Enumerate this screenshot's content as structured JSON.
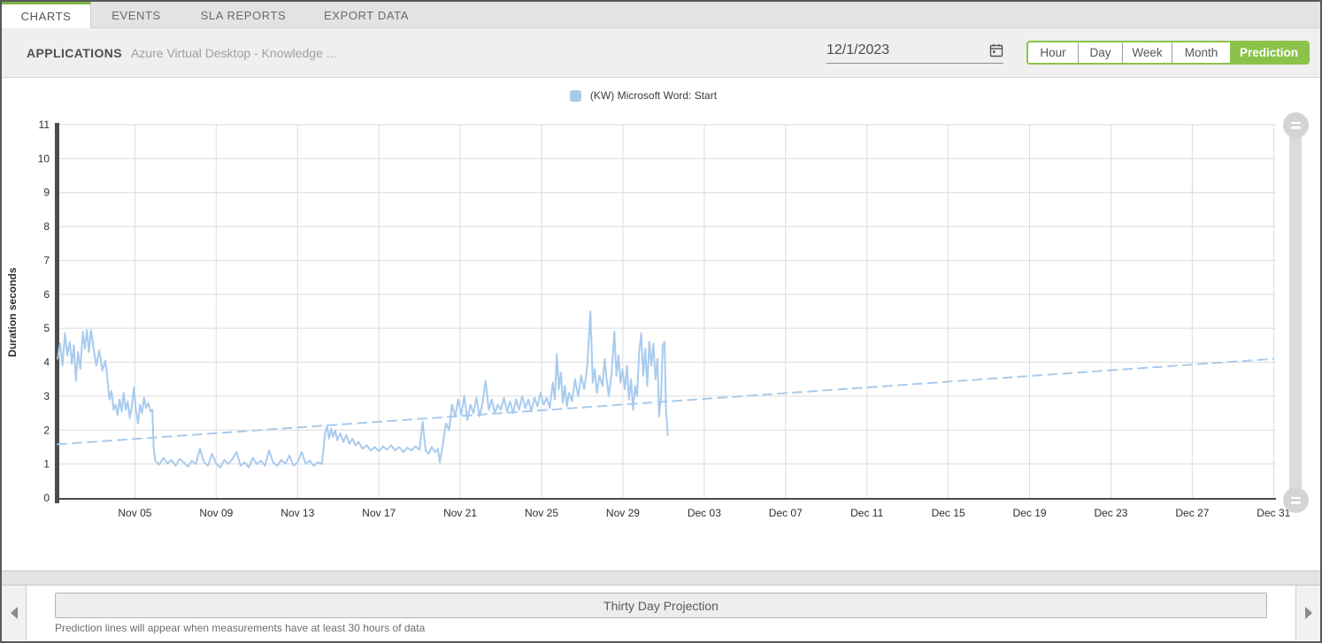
{
  "tabs": {
    "items": [
      {
        "label": "CHARTS",
        "active": true
      },
      {
        "label": "EVENTS",
        "active": false
      },
      {
        "label": "SLA REPORTS",
        "active": false
      },
      {
        "label": "EXPORT DATA",
        "active": false
      }
    ]
  },
  "header": {
    "section_label": "APPLICATIONS",
    "section_value": "Azure Virtual Desktop - Knowledge ...",
    "date_value": "12/1/2023",
    "range_buttons": [
      {
        "label": "Hour",
        "active": false
      },
      {
        "label": "Day",
        "active": false
      },
      {
        "label": "Week",
        "active": false
      },
      {
        "label": "Month",
        "active": false
      },
      {
        "label": "Prediction",
        "active": true
      }
    ],
    "accent_color": "#8bc34a"
  },
  "legend": {
    "label": "(KW) Microsoft Word: Start",
    "color": "#a8cbee"
  },
  "chart_data": {
    "type": "line",
    "title": "",
    "xlabel": "",
    "ylabel": "Duration seconds",
    "ylim": [
      0,
      11
    ],
    "x_range_days": [
      0,
      60
    ],
    "x_start_date": "Nov 01",
    "grid": true,
    "legend_position": "top-center",
    "y_ticks": [
      0,
      1,
      2,
      3,
      4,
      5,
      6,
      7,
      8,
      9,
      10,
      11
    ],
    "x_ticks": [
      {
        "day": 4,
        "label": "Nov 05"
      },
      {
        "day": 8,
        "label": "Nov 09"
      },
      {
        "day": 12,
        "label": "Nov 13"
      },
      {
        "day": 16,
        "label": "Nov 17"
      },
      {
        "day": 20,
        "label": "Nov 21"
      },
      {
        "day": 24,
        "label": "Nov 25"
      },
      {
        "day": 28,
        "label": "Nov 29"
      },
      {
        "day": 32,
        "label": "Dec 03"
      },
      {
        "day": 36,
        "label": "Dec 07"
      },
      {
        "day": 40,
        "label": "Dec 11"
      },
      {
        "day": 44,
        "label": "Dec 15"
      },
      {
        "day": 48,
        "label": "Dec 19"
      },
      {
        "day": 52,
        "label": "Dec 23"
      },
      {
        "day": 56,
        "label": "Dec 27"
      },
      {
        "day": 60,
        "label": "Dec 31"
      }
    ],
    "series": [
      {
        "name": "(KW) Microsoft Word: Start",
        "style": "solid",
        "color": "#a8cbee",
        "points": [
          [
            0.2,
            4.1
          ],
          [
            0.32,
            4.55
          ],
          [
            0.44,
            3.9
          ],
          [
            0.56,
            4.85
          ],
          [
            0.68,
            4.2
          ],
          [
            0.8,
            4.6
          ],
          [
            0.9,
            3.95
          ],
          [
            1.0,
            4.5
          ],
          [
            1.1,
            3.45
          ],
          [
            1.2,
            4.3
          ],
          [
            1.32,
            3.8
          ],
          [
            1.44,
            4.9
          ],
          [
            1.54,
            4.4
          ],
          [
            1.64,
            4.95
          ],
          [
            1.74,
            4.3
          ],
          [
            1.84,
            4.95
          ],
          [
            1.95,
            4.5
          ],
          [
            2.1,
            3.9
          ],
          [
            2.25,
            4.35
          ],
          [
            2.4,
            3.75
          ],
          [
            2.55,
            4.05
          ],
          [
            2.65,
            3.5
          ],
          [
            2.75,
            2.9
          ],
          [
            2.85,
            3.15
          ],
          [
            2.95,
            2.6
          ],
          [
            3.05,
            2.75
          ],
          [
            3.15,
            2.45
          ],
          [
            3.25,
            2.9
          ],
          [
            3.35,
            2.55
          ],
          [
            3.45,
            3.1
          ],
          [
            3.55,
            2.6
          ],
          [
            3.65,
            2.85
          ],
          [
            3.75,
            2.35
          ],
          [
            3.85,
            2.7
          ],
          [
            3.95,
            3.25
          ],
          [
            4.05,
            2.6
          ],
          [
            4.15,
            2.2
          ],
          [
            4.25,
            2.75
          ],
          [
            4.35,
            2.5
          ],
          [
            4.45,
            2.95
          ],
          [
            4.55,
            2.65
          ],
          [
            4.65,
            2.8
          ],
          [
            4.78,
            2.55
          ],
          [
            4.86,
            2.6
          ],
          [
            4.92,
            1.5
          ],
          [
            5.0,
            1.1
          ],
          [
            5.2,
            0.98
          ],
          [
            5.4,
            1.18
          ],
          [
            5.6,
            1.02
          ],
          [
            5.8,
            1.12
          ],
          [
            6.0,
            0.95
          ],
          [
            6.2,
            1.15
          ],
          [
            6.4,
            1.05
          ],
          [
            6.6,
            0.92
          ],
          [
            6.8,
            1.1
          ],
          [
            7.0,
            1.0
          ],
          [
            7.2,
            1.45
          ],
          [
            7.4,
            1.05
          ],
          [
            7.6,
            0.95
          ],
          [
            7.8,
            1.3
          ],
          [
            8.0,
            1.02
          ],
          [
            8.2,
            0.9
          ],
          [
            8.4,
            1.12
          ],
          [
            8.6,
            1.0
          ],
          [
            8.8,
            1.15
          ],
          [
            9.0,
            1.35
          ],
          [
            9.2,
            0.95
          ],
          [
            9.4,
            1.05
          ],
          [
            9.6,
            0.9
          ],
          [
            9.8,
            1.18
          ],
          [
            10.0,
            1.0
          ],
          [
            10.2,
            1.1
          ],
          [
            10.4,
            0.95
          ],
          [
            10.6,
            1.4
          ],
          [
            10.8,
            1.05
          ],
          [
            11.0,
            0.95
          ],
          [
            11.2,
            1.12
          ],
          [
            11.4,
            1.0
          ],
          [
            11.6,
            1.25
          ],
          [
            11.8,
            0.95
          ],
          [
            12.0,
            1.05
          ],
          [
            12.2,
            1.35
          ],
          [
            12.4,
            1.0
          ],
          [
            12.6,
            1.1
          ],
          [
            12.8,
            0.95
          ],
          [
            13.0,
            1.05
          ],
          [
            13.2,
            1.0
          ],
          [
            13.35,
            1.9
          ],
          [
            13.45,
            2.1
          ],
          [
            13.55,
            1.75
          ],
          [
            13.65,
            2.05
          ],
          [
            13.75,
            1.8
          ],
          [
            13.85,
            2.0
          ],
          [
            13.95,
            1.7
          ],
          [
            14.1,
            1.9
          ],
          [
            14.25,
            1.65
          ],
          [
            14.4,
            1.85
          ],
          [
            14.55,
            1.6
          ],
          [
            14.7,
            1.75
          ],
          [
            14.85,
            1.55
          ],
          [
            15.0,
            1.65
          ],
          [
            15.2,
            1.45
          ],
          [
            15.4,
            1.55
          ],
          [
            15.6,
            1.4
          ],
          [
            15.8,
            1.5
          ],
          [
            16.0,
            1.38
          ],
          [
            16.2,
            1.52
          ],
          [
            16.4,
            1.42
          ],
          [
            16.6,
            1.55
          ],
          [
            16.8,
            1.4
          ],
          [
            17.0,
            1.5
          ],
          [
            17.2,
            1.35
          ],
          [
            17.4,
            1.48
          ],
          [
            17.6,
            1.4
          ],
          [
            17.8,
            1.52
          ],
          [
            18.0,
            1.42
          ],
          [
            18.15,
            2.25
          ],
          [
            18.3,
            1.4
          ],
          [
            18.45,
            1.3
          ],
          [
            18.6,
            1.5
          ],
          [
            18.75,
            1.35
          ],
          [
            18.9,
            1.45
          ],
          [
            19.0,
            1.05
          ],
          [
            19.15,
            1.6
          ],
          [
            19.3,
            2.2
          ],
          [
            19.45,
            2.0
          ],
          [
            19.6,
            2.75
          ],
          [
            19.75,
            2.4
          ],
          [
            19.9,
            2.9
          ],
          [
            20.05,
            2.45
          ],
          [
            20.2,
            3.0
          ],
          [
            20.35,
            2.3
          ],
          [
            20.5,
            2.75
          ],
          [
            20.65,
            2.5
          ],
          [
            20.8,
            2.95
          ],
          [
            20.95,
            2.4
          ],
          [
            21.1,
            2.8
          ],
          [
            21.25,
            3.45
          ],
          [
            21.4,
            2.6
          ],
          [
            21.55,
            2.9
          ],
          [
            21.7,
            2.5
          ],
          [
            21.85,
            2.75
          ],
          [
            22.0,
            2.6
          ],
          [
            22.15,
            2.95
          ],
          [
            22.3,
            2.55
          ],
          [
            22.45,
            2.85
          ],
          [
            22.6,
            2.5
          ],
          [
            22.75,
            2.9
          ],
          [
            22.9,
            2.6
          ],
          [
            23.05,
            3.0
          ],
          [
            23.2,
            2.65
          ],
          [
            23.35,
            2.9
          ],
          [
            23.5,
            2.55
          ],
          [
            23.65,
            2.95
          ],
          [
            23.8,
            2.7
          ],
          [
            23.95,
            3.1
          ],
          [
            24.1,
            2.75
          ],
          [
            24.25,
            2.95
          ],
          [
            24.4,
            2.65
          ],
          [
            24.55,
            3.4
          ],
          [
            24.65,
            2.9
          ],
          [
            24.75,
            4.25
          ],
          [
            24.85,
            3.2
          ],
          [
            24.95,
            3.7
          ],
          [
            25.05,
            2.8
          ],
          [
            25.15,
            3.3
          ],
          [
            25.25,
            2.7
          ],
          [
            25.35,
            3.1
          ],
          [
            25.5,
            2.85
          ],
          [
            25.65,
            3.5
          ],
          [
            25.8,
            3.0
          ],
          [
            25.95,
            3.6
          ],
          [
            26.1,
            3.2
          ],
          [
            26.25,
            3.9
          ],
          [
            26.4,
            5.5
          ],
          [
            26.52,
            3.4
          ],
          [
            26.62,
            3.8
          ],
          [
            26.72,
            3.1
          ],
          [
            26.85,
            3.6
          ],
          [
            27.0,
            3.3
          ],
          [
            27.1,
            4.1
          ],
          [
            27.2,
            3.5
          ],
          [
            27.3,
            3.0
          ],
          [
            27.45,
            3.7
          ],
          [
            27.58,
            4.9
          ],
          [
            27.68,
            3.6
          ],
          [
            27.78,
            4.2
          ],
          [
            27.88,
            3.4
          ],
          [
            27.98,
            3.8
          ],
          [
            28.1,
            3.2
          ],
          [
            28.2,
            3.9
          ],
          [
            28.3,
            2.9
          ],
          [
            28.4,
            3.5
          ],
          [
            28.5,
            2.6
          ],
          [
            28.6,
            3.3
          ],
          [
            28.7,
            3.0
          ],
          [
            28.8,
            4.3
          ],
          [
            28.9,
            4.85
          ],
          [
            29.0,
            3.6
          ],
          [
            29.1,
            4.4
          ],
          [
            29.2,
            3.3
          ],
          [
            29.3,
            4.6
          ],
          [
            29.4,
            3.9
          ],
          [
            29.5,
            4.55
          ],
          [
            29.6,
            3.5
          ],
          [
            29.7,
            4.1
          ],
          [
            29.78,
            2.4
          ],
          [
            29.88,
            3.0
          ],
          [
            29.96,
            4.5
          ],
          [
            30.05,
            4.6
          ],
          [
            30.12,
            2.6
          ],
          [
            30.2,
            1.85
          ]
        ]
      },
      {
        "name": "prediction-trend",
        "style": "dashed",
        "color": "#a8cbee",
        "points": [
          [
            0.2,
            1.58
          ],
          [
            60,
            4.1
          ]
        ]
      }
    ]
  },
  "footer": {
    "projection_label": "Thirty Day Projection",
    "caption": "Prediction lines will appear when measurements have at least 30 hours of data"
  }
}
